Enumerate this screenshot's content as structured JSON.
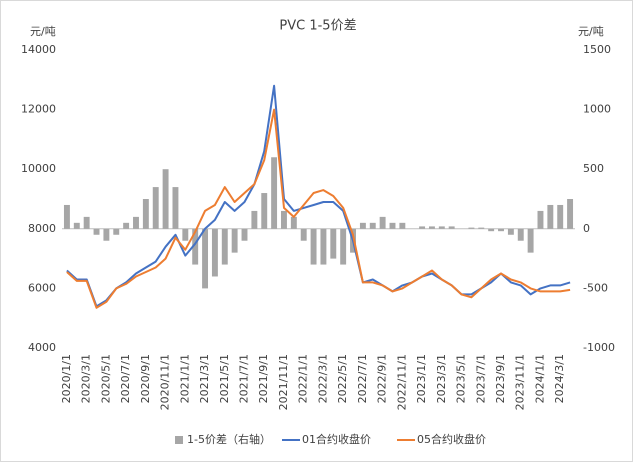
{
  "chart_data": {
    "type": "combo",
    "title": "PVC 1-5价差",
    "ylabel": "元/吨",
    "y2label": "元/吨",
    "categories": [
      "2020/1/1",
      null,
      "2020/3/1",
      null,
      "2020/5/1",
      null,
      "2020/7/1",
      null,
      "2020/9/1",
      null,
      "2020/11/1",
      null,
      "2021/1/1",
      null,
      "2021/3/1",
      null,
      "2021/5/1",
      null,
      "2021/7/1",
      null,
      "2021/9/1",
      null,
      "2021/11/1",
      null,
      "2022/1/1",
      null,
      "2022/3/1",
      null,
      "2022/5/1",
      null,
      "2022/7/1",
      null,
      "2022/9/1",
      null,
      "2022/11/1",
      null,
      "2023/1/1",
      null,
      "2023/3/1",
      null,
      "2023/5/1",
      null,
      "2023/7/1",
      null,
      "2023/9/1",
      null,
      "2023/11/1",
      null,
      "2024/1/1",
      null,
      "2024/3/1",
      null
    ],
    "series": [
      {
        "name": "1-5价差（右轴）",
        "type": "bar",
        "axis": "y2",
        "color": "#a6a6a6",
        "values": [
          200,
          50,
          100,
          -50,
          -100,
          -50,
          50,
          100,
          250,
          350,
          500,
          350,
          -100,
          -300,
          -500,
          -400,
          -300,
          -200,
          -100,
          150,
          300,
          600,
          150,
          100,
          -100,
          -300,
          -300,
          -250,
          -300,
          -200,
          50,
          50,
          100,
          50,
          50,
          0,
          20,
          20,
          20,
          20,
          0,
          10,
          10,
          -20,
          -20,
          -50,
          -100,
          -200,
          150,
          200,
          200,
          250
        ]
      },
      {
        "name": "01合约收盘价",
        "type": "line",
        "color": "#4472c4",
        "values": [
          6600,
          6300,
          6300,
          5400,
          5600,
          6000,
          6200,
          6500,
          6700,
          6900,
          7400,
          7800,
          7100,
          7500,
          8000,
          8300,
          8900,
          8600,
          8900,
          9500,
          10600,
          12800,
          9000,
          8600,
          8700,
          8800,
          8900,
          8900,
          8600,
          7600,
          6200,
          6300,
          6100,
          5900,
          6100,
          6200,
          6400,
          6500,
          6300,
          6100,
          5800,
          5800,
          6000,
          6200,
          6500,
          6200,
          6100,
          5800,
          6000,
          6100,
          6100,
          6200
        ]
      },
      {
        "name": "05合约收盘价",
        "type": "line",
        "color": "#ed7d31",
        "values": [
          6550,
          6250,
          6250,
          5350,
          5550,
          6000,
          6150,
          6400,
          6550,
          6700,
          7000,
          7700,
          7300,
          7900,
          8600,
          8800,
          9400,
          8900,
          9200,
          9500,
          10300,
          12000,
          8700,
          8400,
          8800,
          9200,
          9300,
          9100,
          8700,
          7800,
          6200,
          6200,
          6100,
          5900,
          6000,
          6200,
          6400,
          6600,
          6300,
          6100,
          5800,
          5700,
          6000,
          6300,
          6500,
          6300,
          6200,
          6000,
          5900,
          5900,
          5900,
          5950
        ]
      }
    ],
    "ylim": [
      4000,
      14000
    ],
    "yticks": [
      4000,
      6000,
      8000,
      10000,
      12000,
      14000
    ],
    "y2lim": [
      -1000,
      1500
    ],
    "y2ticks": [
      -1000,
      -500,
      0,
      500,
      1000,
      1500
    ],
    "grid": false,
    "legend": "bottom"
  }
}
